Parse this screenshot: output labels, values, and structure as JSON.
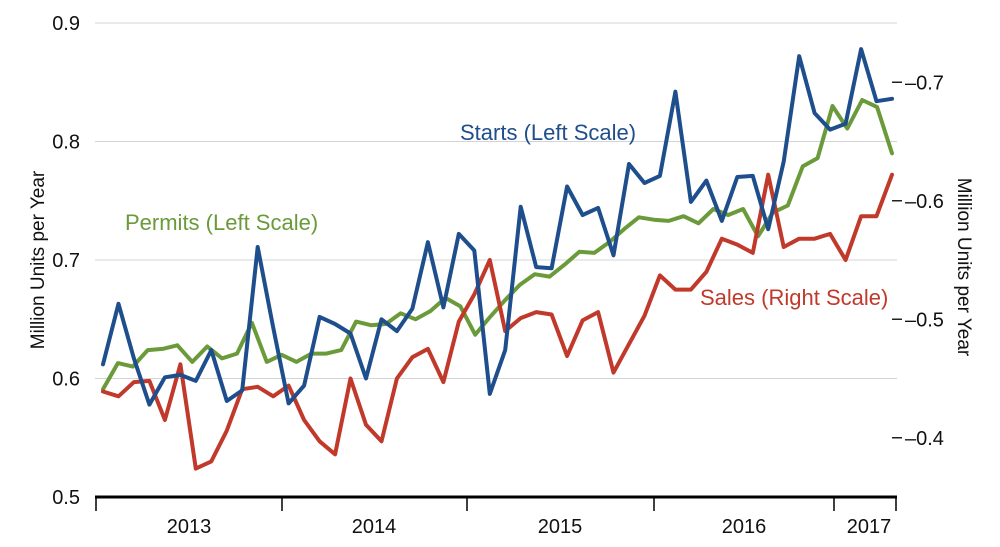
{
  "chart_data": {
    "type": "line",
    "x_labels": [
      "2013",
      "2014",
      "2015",
      "2016",
      "2017"
    ],
    "left_axis": {
      "label": "Million Units per Year",
      "range": [
        0.5,
        0.9
      ],
      "ticks": [
        "0.5",
        "0.6",
        "0.7",
        "0.8",
        "0.9"
      ]
    },
    "right_axis": {
      "label": "Million Units per Year",
      "range": [
        0.35,
        0.75
      ],
      "ticks": [
        "0.4",
        "0.5",
        "0.6",
        "0.7"
      ]
    },
    "grid": true,
    "series": [
      {
        "name": "Starts (Left Scale)",
        "axis": "left",
        "color": "#1f4e8c",
        "values": [
          0.612,
          0.663,
          0.617,
          0.578,
          0.601,
          0.603,
          0.598,
          0.624,
          0.581,
          0.59,
          0.711,
          0.643,
          0.579,
          0.594,
          0.652,
          0.646,
          0.638,
          0.6,
          0.65,
          0.64,
          0.659,
          0.715,
          0.66,
          0.722,
          0.708,
          0.587,
          0.624,
          0.745,
          0.694,
          0.693,
          0.762,
          0.738,
          0.744,
          0.704,
          0.781,
          0.765,
          0.771,
          0.842,
          0.749,
          0.767,
          0.733,
          0.77,
          0.771,
          0.726,
          0.783,
          0.872,
          0.824,
          0.81,
          0.815,
          0.878,
          0.834,
          0.836
        ]
      },
      {
        "name": "Permits (Left Scale)",
        "axis": "left",
        "color": "#6a9a3a",
        "values": [
          0.591,
          0.613,
          0.61,
          0.624,
          0.625,
          0.628,
          0.614,
          0.627,
          0.617,
          0.621,
          0.647,
          0.614,
          0.62,
          0.614,
          0.621,
          0.621,
          0.624,
          0.648,
          0.645,
          0.646,
          0.655,
          0.65,
          0.657,
          0.668,
          0.661,
          0.637,
          0.652,
          0.666,
          0.679,
          0.688,
          0.686,
          0.696,
          0.707,
          0.706,
          0.715,
          0.726,
          0.736,
          0.734,
          0.733,
          0.737,
          0.731,
          0.743,
          0.738,
          0.743,
          0.72,
          0.74,
          0.746,
          0.779,
          0.786,
          0.83,
          0.811,
          0.835,
          0.829,
          0.79
        ]
      },
      {
        "name": "Sales (Right Scale)",
        "axis": "right",
        "color": "#c0392b",
        "values": [
          0.439,
          0.435,
          0.447,
          0.448,
          0.415,
          0.462,
          0.374,
          0.38,
          0.406,
          0.441,
          0.443,
          0.435,
          0.444,
          0.415,
          0.397,
          0.386,
          0.45,
          0.411,
          0.397,
          0.45,
          0.468,
          0.475,
          0.447,
          0.498,
          0.521,
          0.55,
          0.49,
          0.501,
          0.506,
          0.504,
          0.469,
          0.499,
          0.506,
          0.455,
          0.479,
          0.503,
          0.537,
          0.525,
          0.525,
          0.54,
          0.568,
          0.563,
          0.556,
          0.622,
          0.561,
          0.568,
          0.568,
          0.572,
          0.55,
          0.587,
          0.587,
          0.622
        ]
      }
    ],
    "annotations": [
      {
        "text": "Starts (Left Scale)",
        "color": "#1f4e8c"
      },
      {
        "text": "Permits (Left Scale)",
        "color": "#6a9a3a"
      },
      {
        "text": "Sales (Right Scale)",
        "color": "#c0392b"
      }
    ]
  }
}
